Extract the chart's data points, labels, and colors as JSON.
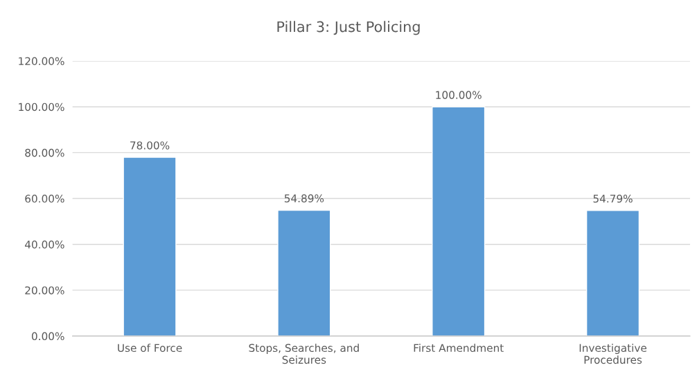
{
  "chart_data": {
    "type": "bar",
    "title": "Pillar 3: Just Policing",
    "categories": [
      "Use of Force",
      "Stops, Searches, and Seizures",
      "First Amendment",
      "Investigative Procedures"
    ],
    "values": [
      78,
      54.89,
      100,
      54.79
    ],
    "value_labels": [
      "78.00%",
      "54.89%",
      "100.00%",
      "54.79%"
    ],
    "color": "#5b9bd5",
    "ylim": [
      0,
      120
    ],
    "yticks": [
      {
        "value": 0,
        "label": "0.00%"
      },
      {
        "value": 20,
        "label": "20.00%"
      },
      {
        "value": 40,
        "label": "40.00%"
      },
      {
        "value": 60,
        "label": "60.00%"
      },
      {
        "value": 80,
        "label": "80.00%"
      },
      {
        "value": 100,
        "label": "100.00%"
      },
      {
        "value": 120,
        "label": "120.00%"
      }
    ],
    "grid": "y",
    "legend": false
  }
}
